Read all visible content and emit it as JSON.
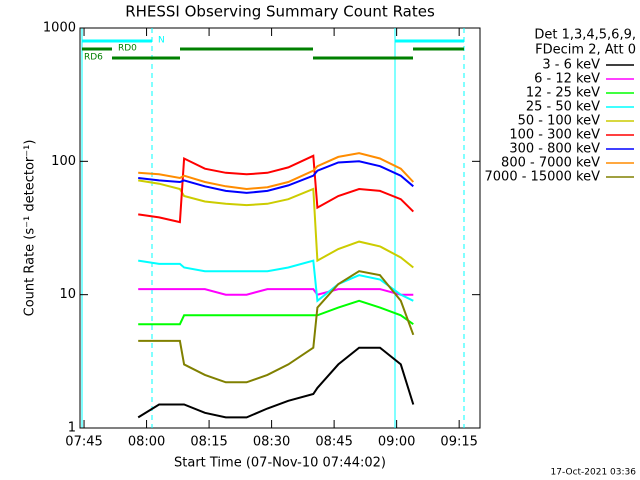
{
  "chart_data": {
    "type": "line",
    "title": "RHESSI Observing Summary Count Rates",
    "xlabel": "Start Time (07-Nov-10 07:44:02)",
    "ylabel": "Count Rate (s⁻¹ detector⁻¹)",
    "log_y": true,
    "xlim": [
      464.03,
      560
    ],
    "ylim": [
      1,
      1000
    ],
    "yticks": [
      1,
      10,
      100,
      1000
    ],
    "xticks": [
      {
        "value": 465,
        "label": "07:45"
      },
      {
        "value": 480,
        "label": "08:00"
      },
      {
        "value": 495,
        "label": "08:15"
      },
      {
        "value": 510,
        "label": "08:30"
      },
      {
        "value": 525,
        "label": "08:45"
      },
      {
        "value": 540,
        "label": "09:00"
      },
      {
        "value": 555,
        "label": "09:15"
      }
    ],
    "legend_title": [
      "Det 1,3,4,5,6,9,",
      "FDecim 2, Att 0"
    ],
    "annotations": [
      "N",
      "RD0",
      "RD6"
    ],
    "footer": "17-Oct-2021 03:36",
    "x": [
      478,
      483,
      488,
      489,
      494,
      499,
      504,
      509,
      514,
      520,
      521,
      526,
      531,
      536,
      541,
      544
    ],
    "series": [
      {
        "name": "3 - 6 keV",
        "color": "#000000",
        "values": [
          1.2,
          1.5,
          1.5,
          1.5,
          1.3,
          1.2,
          1.2,
          1.4,
          1.6,
          1.8,
          2,
          3,
          4,
          4,
          3,
          1.5
        ]
      },
      {
        "name": "6 - 12 keV",
        "color": "#ff00ff",
        "values": [
          11,
          11,
          11,
          11,
          11,
          10,
          10,
          11,
          11,
          11,
          10,
          11,
          11,
          11,
          10,
          10
        ]
      },
      {
        "name": "12 - 25 keV",
        "color": "#00ff00",
        "values": [
          6,
          6,
          6,
          7,
          7,
          7,
          7,
          7,
          7,
          7,
          7,
          8,
          9,
          8,
          7,
          6
        ]
      },
      {
        "name": "25 - 50 keV",
        "color": "#00ffff",
        "values": [
          18,
          17,
          17,
          16,
          15,
          15,
          15,
          15,
          16,
          18,
          9,
          12,
          14,
          13,
          10,
          9
        ]
      },
      {
        "name": "50 - 100 keV",
        "color": "#cccc00",
        "values": [
          72,
          68,
          62,
          55,
          50,
          48,
          47,
          48,
          52,
          62,
          18,
          22,
          25,
          23,
          19,
          16
        ]
      },
      {
        "name": "100 - 300 keV",
        "color": "#ff0000",
        "values": [
          40,
          38,
          35,
          105,
          88,
          82,
          80,
          82,
          90,
          110,
          45,
          55,
          62,
          60,
          52,
          42
        ]
      },
      {
        "name": "300 - 800 keV",
        "color": "#0000ff",
        "values": [
          75,
          72,
          70,
          72,
          65,
          60,
          58,
          60,
          66,
          78,
          85,
          98,
          100,
          92,
          78,
          65
        ]
      },
      {
        "name": "800 - 7000 keV",
        "color": "#ff8c00",
        "values": [
          82,
          80,
          75,
          78,
          70,
          65,
          62,
          64,
          70,
          85,
          92,
          108,
          115,
          105,
          88,
          70
        ]
      },
      {
        "name": "7000 - 15000 keV",
        "color": "#808000",
        "values": [
          4.5,
          4.5,
          4.5,
          3,
          2.5,
          2.2,
          2.2,
          2.5,
          3,
          4,
          8,
          12,
          15,
          14,
          9,
          5
        ]
      }
    ]
  }
}
